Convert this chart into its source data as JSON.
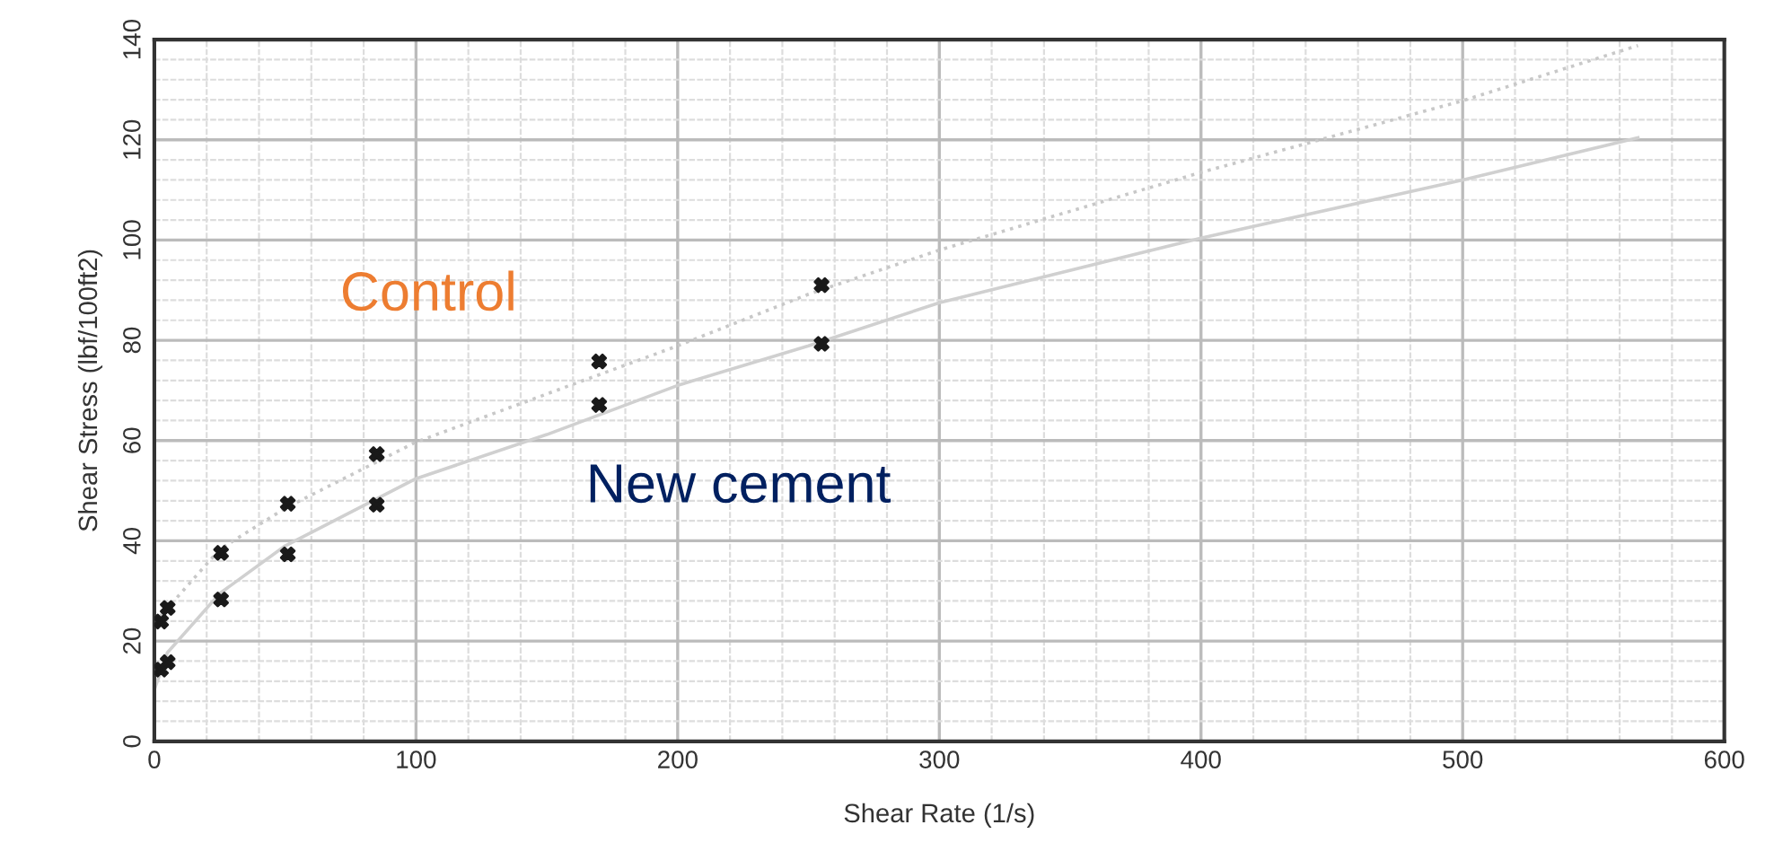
{
  "chart_data": {
    "type": "scatter",
    "xlabel": "Shear Rate (1/s)",
    "ylabel": "Shear Stress (lbf/100ft2)",
    "xlim": [
      0,
      600
    ],
    "xticks": [
      0,
      100,
      200,
      300,
      400,
      500,
      600
    ],
    "ylim": [
      0,
      140
    ],
    "yticks": [
      0,
      20,
      40,
      60,
      80,
      100,
      120,
      140
    ],
    "grid": true,
    "legend": false,
    "marker": "cross",
    "series": [
      {
        "type": "line",
        "color": "#c8c8c8",
        "line_style": "dotted",
        "marker": "none",
        "x": [
          0,
          25,
          50,
          100,
          150,
          200,
          250,
          300,
          400,
          500,
          567
        ],
        "values": [
          23.6,
          38.3,
          46.5,
          59.7,
          69.3,
          78.9,
          89.2,
          98,
          113.5,
          127.8,
          138.8
        ]
      },
      {
        "type": "line",
        "color": "#d0d0d0",
        "line_style": "solid",
        "marker": "none",
        "x": [
          0,
          5,
          25,
          50,
          100,
          150,
          200,
          250,
          300,
          400,
          500,
          567
        ],
        "values": [
          10.3,
          17.7,
          29.5,
          39,
          52.4,
          61.2,
          71,
          78.9,
          87.5,
          100.4,
          112,
          120.4
        ]
      },
      {
        "name": "Control",
        "color": "#1a1a1a",
        "x": [
          2.55,
          5.1,
          25.5,
          51,
          85,
          170,
          255
        ],
        "values": [
          23.9,
          26.6,
          37.6,
          47.4,
          57.3,
          75.8,
          91
        ]
      },
      {
        "name": "New cement",
        "color": "#1a1a1a",
        "x": [
          2.55,
          5.1,
          25.5,
          51,
          85,
          170,
          255
        ],
        "values": [
          14.3,
          15.8,
          28.3,
          37.3,
          47.2,
          67.1,
          79.3
        ]
      }
    ]
  }
}
